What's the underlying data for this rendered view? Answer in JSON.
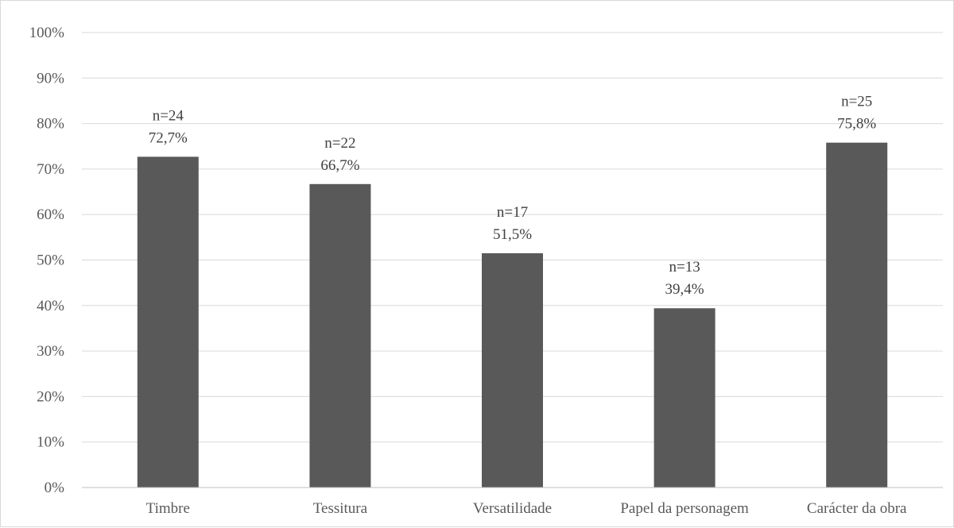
{
  "chart_data": {
    "type": "bar",
    "categories": [
      "Timbre",
      "Tessitura",
      "Versatilidade",
      "Papel da personagem",
      "Carácter da obra"
    ],
    "values": [
      72.7,
      66.7,
      51.5,
      39.4,
      75.8
    ],
    "counts": [
      24,
      22,
      17,
      13,
      25
    ],
    "data_labels": [
      [
        "n=24",
        "72,7%"
      ],
      [
        "n=22",
        "66,7%"
      ],
      [
        "n=17",
        "51,5%"
      ],
      [
        "n=13",
        "39,4%"
      ],
      [
        "n=25",
        "75,8%"
      ]
    ],
    "title": "",
    "xlabel": "",
    "ylabel": "",
    "ylim": [
      0,
      100
    ],
    "yticks": [
      "0%",
      "10%",
      "20%",
      "30%",
      "40%",
      "50%",
      "60%",
      "70%",
      "80%",
      "90%",
      "100%"
    ],
    "grid": true,
    "legend": "none",
    "bar_color": "#595959"
  }
}
